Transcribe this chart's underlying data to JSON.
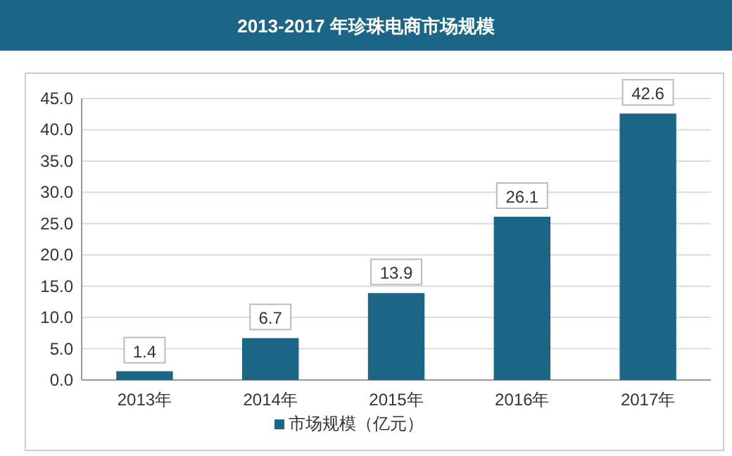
{
  "chart_data": {
    "type": "bar",
    "title": "2013-2017 年珍珠电商市场规模",
    "categories": [
      "2013年",
      "2014年",
      "2015年",
      "2016年",
      "2017年"
    ],
    "series": [
      {
        "name": "市场规模（亿元）",
        "color": "#1b6686",
        "values": [
          1.4,
          6.7,
          13.9,
          26.1,
          42.6
        ]
      }
    ],
    "ylim": [
      0,
      45
    ],
    "yticks": [
      {
        "value": 0,
        "label": "0.0"
      },
      {
        "value": 5,
        "label": "5.0"
      },
      {
        "value": 10,
        "label": "10.0"
      },
      {
        "value": 15,
        "label": "15.0"
      },
      {
        "value": 20,
        "label": "20.0"
      },
      {
        "value": 25,
        "label": "25.0"
      },
      {
        "value": 30,
        "label": "30.0"
      },
      {
        "value": 35,
        "label": "35.0"
      },
      {
        "value": 40,
        "label": "40.0"
      },
      {
        "value": 45,
        "label": "45.0"
      }
    ],
    "grid": "y",
    "legend": "bottom",
    "data_labels": true
  }
}
